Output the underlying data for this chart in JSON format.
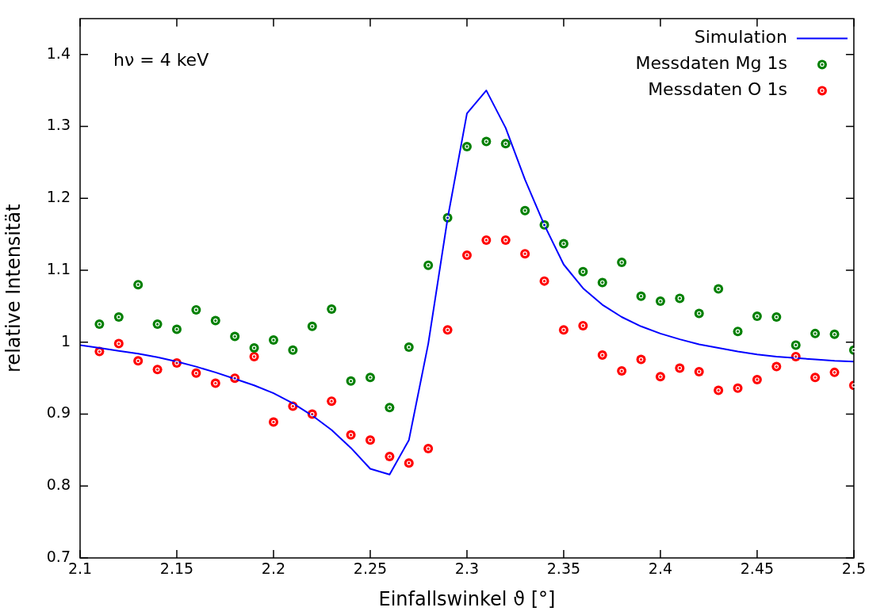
{
  "chart_data": {
    "type": "scatter",
    "xlabel": "Einfallswinkel ϑ [°]",
    "ylabel": "relative Intensität",
    "annotations": [
      "hν = 4 keV"
    ],
    "x": [
      2.1,
      2.11,
      2.12,
      2.13,
      2.14,
      2.15,
      2.16,
      2.17,
      2.18,
      2.19,
      2.2,
      2.21,
      2.22,
      2.23,
      2.24,
      2.25,
      2.26,
      2.27,
      2.28,
      2.29,
      2.3,
      2.31,
      2.32,
      2.33,
      2.34,
      2.35,
      2.36,
      2.37,
      2.38,
      2.39,
      2.4,
      2.41,
      2.42,
      2.43,
      2.44,
      2.45,
      2.46,
      2.47,
      2.48,
      2.49,
      2.5
    ],
    "series": [
      {
        "name": "Simulation",
        "type": "line",
        "marker": "none",
        "color": "#0000ff",
        "values": [
          0.996,
          0.992,
          0.988,
          0.984,
          0.979,
          0.973,
          0.966,
          0.958,
          0.949,
          0.94,
          0.929,
          0.915,
          0.898,
          0.878,
          0.853,
          0.824,
          0.816,
          0.864,
          0.998,
          1.172,
          1.318,
          1.35,
          1.298,
          1.226,
          1.163,
          1.108,
          1.075,
          1.052,
          1.035,
          1.022,
          1.012,
          1.004,
          0.997,
          0.992,
          0.987,
          0.983,
          0.98,
          0.978,
          0.976,
          0.974,
          0.973
        ]
      },
      {
        "name": "Messdaten Mg 1s",
        "type": "scatter",
        "marker": "circle",
        "color": "#008000",
        "x": [
          2.11,
          2.12,
          2.13,
          2.14,
          2.15,
          2.16,
          2.17,
          2.18,
          2.19,
          2.2,
          2.21,
          2.22,
          2.23,
          2.24,
          2.25,
          2.26,
          2.27,
          2.28,
          2.29,
          2.3,
          2.31,
          2.32,
          2.33,
          2.34,
          2.35,
          2.36,
          2.37,
          2.38,
          2.39,
          2.4,
          2.41,
          2.42,
          2.43,
          2.44,
          2.45,
          2.46,
          2.47,
          2.48,
          2.49,
          2.5
        ],
        "values": [
          1.025,
          1.035,
          1.08,
          1.025,
          1.018,
          1.045,
          1.03,
          1.008,
          0.992,
          1.003,
          0.989,
          1.022,
          1.046,
          0.946,
          0.951,
          0.909,
          0.993,
          1.107,
          1.173,
          1.272,
          1.279,
          1.276,
          1.183,
          1.163,
          1.137,
          1.098,
          1.083,
          1.111,
          1.064,
          1.057,
          1.061,
          1.04,
          1.074,
          1.015,
          1.036,
          1.035,
          0.996,
          1.012,
          1.011,
          0.989
        ]
      },
      {
        "name": "Messdaten O 1s",
        "type": "scatter",
        "marker": "circle",
        "color": "#ff0000",
        "x": [
          2.11,
          2.12,
          2.13,
          2.14,
          2.15,
          2.16,
          2.17,
          2.18,
          2.19,
          2.2,
          2.21,
          2.22,
          2.23,
          2.24,
          2.25,
          2.26,
          2.27,
          2.28,
          2.29,
          2.3,
          2.31,
          2.32,
          2.33,
          2.34,
          2.35,
          2.36,
          2.37,
          2.38,
          2.39,
          2.4,
          2.41,
          2.42,
          2.43,
          2.44,
          2.45,
          2.46,
          2.47,
          2.48,
          2.49,
          2.5
        ],
        "values": [
          0.987,
          0.998,
          0.974,
          0.962,
          0.971,
          0.957,
          0.943,
          0.95,
          0.98,
          0.889,
          0.911,
          0.9,
          0.918,
          0.871,
          0.864,
          0.841,
          0.832,
          0.852,
          1.017,
          1.121,
          1.142,
          1.142,
          1.123,
          1.085,
          1.017,
          1.023,
          0.982,
          0.96,
          0.976,
          0.952,
          0.964,
          0.959,
          0.933,
          0.936,
          0.948,
          0.966,
          0.98,
          0.951,
          0.958,
          0.94
        ]
      }
    ],
    "xlim": [
      2.1,
      2.5
    ],
    "xticks": [
      2.1,
      2.15,
      2.2,
      2.25,
      2.3,
      2.35,
      2.4,
      2.45,
      2.5
    ],
    "ylim": [
      0.7,
      1.45
    ],
    "yticks": [
      0.7,
      0.8,
      0.9,
      1,
      1.1,
      1.2,
      1.3,
      1.4
    ],
    "grid": false,
    "legend": "top right"
  }
}
